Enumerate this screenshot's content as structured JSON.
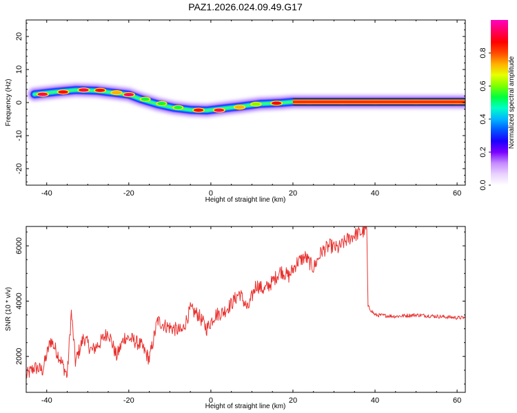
{
  "figure_title": "PAZ1.2026.024.09.49.G17",
  "colors": {
    "snr_line": "#e8312e",
    "colorbar": [
      "#ffffff",
      "#e9d2ff",
      "#c58bff",
      "#7a00ff",
      "#1b00ff",
      "#0055ff",
      "#00b6ff",
      "#00ffc8",
      "#00ff3c",
      "#7dff00",
      "#e8ff00",
      "#ffb000",
      "#ff4a00",
      "#ff0000",
      "#ff0060",
      "#ff00c0"
    ]
  },
  "chart_data": [
    {
      "type": "heatmap",
      "xlabel": "Height of straight line (km)",
      "ylabel": "Frequency (Hz)",
      "xlim": [
        -45,
        62
      ],
      "ylim": [
        -25,
        25
      ],
      "xticks": [
        -40,
        -20,
        0,
        20,
        40,
        60
      ],
      "yticks": [
        -20,
        -10,
        0,
        10,
        20
      ],
      "frequency_track": {
        "x": [
          -43,
          -38,
          -33,
          -28,
          -24,
          -20,
          -17,
          -13,
          -9,
          -5,
          -1,
          3,
          7,
          12,
          17,
          20,
          30,
          40,
          50,
          62
        ],
        "y": [
          2.5,
          3.2,
          3.8,
          3.6,
          3.0,
          2.4,
          1.0,
          -0.5,
          -1.6,
          -2.2,
          -2.4,
          -1.8,
          -1.2,
          -0.4,
          -0.1,
          0.2,
          0.2,
          0.2,
          0.2,
          0.2
        ]
      },
      "amplitude_blobs": [
        {
          "x": -41,
          "y": 2.5,
          "amp": 0.9
        },
        {
          "x": -36,
          "y": 3.2,
          "amp": 0.85
        },
        {
          "x": -31,
          "y": 3.8,
          "amp": 0.9
        },
        {
          "x": -27,
          "y": 3.7,
          "amp": 0.85
        },
        {
          "x": -23,
          "y": 3.0,
          "amp": 0.75
        },
        {
          "x": -20,
          "y": 2.4,
          "amp": 0.9
        },
        {
          "x": -16,
          "y": 1.0,
          "amp": 0.5
        },
        {
          "x": -12,
          "y": -0.3,
          "amp": 0.55
        },
        {
          "x": -8,
          "y": -1.5,
          "amp": 0.5
        },
        {
          "x": -3,
          "y": -2.3,
          "amp": 0.85
        },
        {
          "x": 2,
          "y": -2.3,
          "amp": 0.9
        },
        {
          "x": 7,
          "y": -1.4,
          "amp": 0.75
        },
        {
          "x": 11,
          "y": -0.5,
          "amp": 0.6
        },
        {
          "x": 16,
          "y": -0.2,
          "amp": 0.85
        },
        {
          "x": 24,
          "y": 0.2,
          "amp": 1.0
        },
        {
          "x": 32,
          "y": 0.2,
          "amp": 1.0
        },
        {
          "x": 40,
          "y": 0.2,
          "amp": 1.0
        },
        {
          "x": 50,
          "y": 0.2,
          "amp": 1.0
        },
        {
          "x": 60,
          "y": 0.2,
          "amp": 1.0
        }
      ],
      "colorbar": {
        "label": "Normalized spectral amplitude",
        "range": [
          0,
          1
        ],
        "ticks": [
          "0.0",
          "0.2",
          "0.4",
          "0.6",
          "0.8"
        ],
        "tick_values": [
          0,
          0.2,
          0.4,
          0.6,
          0.8
        ]
      }
    },
    {
      "type": "line",
      "xlabel": "Height of straight line (km)",
      "ylabel": "SNR (10 * v/v)",
      "xlim": [
        -45,
        62
      ],
      "ylim": [
        700,
        6700
      ],
      "xticks": [
        -40,
        -20,
        0,
        20,
        40,
        60
      ],
      "yticks": [
        2000,
        4000,
        6000
      ],
      "series": [
        {
          "x": [
            -45,
            -43,
            -41,
            -39,
            -37,
            -35,
            -34,
            -33,
            -31,
            -29,
            -27,
            -25,
            -23,
            -21,
            -19,
            -17,
            -15,
            -13,
            -11,
            -9,
            -7,
            -5,
            -3,
            -1,
            1,
            3,
            5,
            7,
            9,
            11,
            13,
            15,
            17,
            19,
            21,
            23,
            25,
            27,
            29,
            31,
            33,
            35,
            37,
            38,
            38.3,
            40,
            45,
            50,
            55,
            60,
            62
          ],
          "y": [
            1300,
            1600,
            1500,
            2600,
            2000,
            1300,
            3600,
            1800,
            2700,
            2200,
            2500,
            2900,
            2000,
            2700,
            2600,
            2400,
            1900,
            3300,
            3100,
            3000,
            2900,
            3700,
            3500,
            3000,
            3500,
            3600,
            3900,
            4300,
            3700,
            4600,
            4400,
            4700,
            5100,
            4900,
            5400,
            5600,
            5200,
            5800,
            6000,
            5900,
            6200,
            6400,
            6500,
            6600,
            3800,
            3500,
            3450,
            3500,
            3450,
            3400,
            3400
          ]
        }
      ]
    }
  ]
}
